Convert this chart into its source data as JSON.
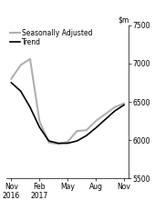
{
  "title": "",
  "ylim": [
    5500,
    7500
  ],
  "yticks": [
    5500,
    6000,
    6500,
    7000,
    7500
  ],
  "x_labels": [
    "Nov\n2016",
    "Feb\n2017",
    "May",
    "Aug",
    "Nov"
  ],
  "x_positions": [
    0,
    3,
    6,
    9,
    12
  ],
  "trend_x": [
    0,
    1,
    2,
    3,
    4,
    5,
    6,
    7,
    8,
    9,
    10,
    11,
    12
  ],
  "trend_y": [
    6750,
    6640,
    6430,
    6170,
    5990,
    5960,
    5960,
    5990,
    6060,
    6160,
    6270,
    6380,
    6460
  ],
  "seas_adj_x": [
    0,
    1,
    2,
    3,
    4,
    5,
    6,
    7,
    8,
    9,
    10,
    11,
    12
  ],
  "seas_adj_y": [
    6800,
    6980,
    7060,
    6250,
    5970,
    5950,
    5980,
    6120,
    6130,
    6250,
    6340,
    6430,
    6480
  ],
  "trend_color": "#000000",
  "seas_adj_color": "#b0b0b0",
  "trend_lw": 1.2,
  "seas_adj_lw": 1.5,
  "legend_trend": "Trend",
  "legend_seas": "Seasonally Adjusted",
  "background_color": "#ffffff",
  "tick_fontsize": 5.5,
  "legend_fontsize": 5.5
}
